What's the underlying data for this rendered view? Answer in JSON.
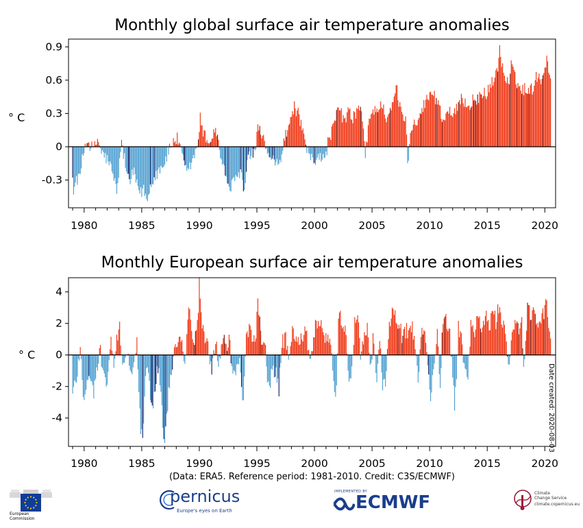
{
  "chart_data": [
    {
      "type": "bar",
      "title": "Monthly global surface air temperature anomalies",
      "ylabel": "° C",
      "xlabel": "",
      "x_range": [
        1979,
        2020.58
      ],
      "ylim": [
        -0.55,
        0.97
      ],
      "y_ticks": [
        "0.9",
        "0.6",
        "0.3",
        "0",
        "-0.3"
      ],
      "y_tick_values": [
        0.9,
        0.6,
        0.3,
        0,
        -0.3
      ],
      "x_ticks": [
        "1980",
        "1985",
        "1990",
        "1995",
        "2000",
        "2005",
        "2010",
        "2015",
        "2020"
      ],
      "x_tick_values": [
        1980,
        1985,
        1990,
        1995,
        2000,
        2005,
        2010,
        2015,
        2020
      ],
      "grid": false,
      "series_note": "monthly anomalies; positive bars red, negative bars blue",
      "monthly_values": [],
      "anchors": [
        [
          1979.0,
          -0.22
        ],
        [
          1979.1,
          -0.48
        ],
        [
          1979.3,
          -0.27
        ],
        [
          1979.5,
          -0.3
        ],
        [
          1979.7,
          -0.22
        ],
        [
          1979.9,
          -0.08
        ],
        [
          1980.2,
          0.06
        ],
        [
          1980.5,
          0.02
        ],
        [
          1980.8,
          -0.03
        ],
        [
          1981.2,
          0.07
        ],
        [
          1981.5,
          -0.05
        ],
        [
          1981.9,
          -0.1
        ],
        [
          1982.3,
          -0.18
        ],
        [
          1982.6,
          -0.3
        ],
        [
          1982.9,
          -0.4
        ],
        [
          1983.2,
          0.04
        ],
        [
          1983.5,
          -0.1
        ],
        [
          1983.8,
          -0.3
        ],
        [
          1984.0,
          -0.32
        ],
        [
          1984.3,
          -0.22
        ],
        [
          1984.6,
          -0.36
        ],
        [
          1984.9,
          -0.42
        ],
        [
          1985.2,
          -0.38
        ],
        [
          1985.5,
          -0.5
        ],
        [
          1985.8,
          -0.32
        ],
        [
          1986.1,
          -0.28
        ],
        [
          1986.4,
          -0.22
        ],
        [
          1986.7,
          -0.18
        ],
        [
          1987.0,
          -0.14
        ],
        [
          1987.4,
          -0.02
        ],
        [
          1987.8,
          0.06
        ],
        [
          1988.1,
          0.07
        ],
        [
          1988.4,
          -0.04
        ],
        [
          1988.7,
          -0.18
        ],
        [
          1989.0,
          -0.24
        ],
        [
          1989.4,
          -0.12
        ],
        [
          1989.8,
          -0.03
        ],
        [
          1990.1,
          0.27
        ],
        [
          1990.3,
          0.12
        ],
        [
          1990.6,
          0.08
        ],
        [
          1990.9,
          0.04
        ],
        [
          1991.2,
          0.1
        ],
        [
          1991.4,
          0.2
        ],
        [
          1991.7,
          0.0
        ],
        [
          1992.1,
          -0.2
        ],
        [
          1992.4,
          -0.3
        ],
        [
          1992.7,
          -0.38
        ],
        [
          1993.0,
          -0.32
        ],
        [
          1993.3,
          -0.28
        ],
        [
          1993.6,
          -0.2
        ],
        [
          1993.9,
          -0.44
        ],
        [
          1994.2,
          -0.12
        ],
        [
          1994.6,
          -0.05
        ],
        [
          1994.9,
          -0.1
        ],
        [
          1995.1,
          0.26
        ],
        [
          1995.3,
          0.1
        ],
        [
          1995.6,
          0.06
        ],
        [
          1995.9,
          -0.04
        ],
        [
          1996.2,
          -0.16
        ],
        [
          1996.5,
          -0.12
        ],
        [
          1996.8,
          -0.18
        ],
        [
          1997.1,
          -0.1
        ],
        [
          1997.4,
          0.08
        ],
        [
          1997.7,
          0.14
        ],
        [
          1998.0,
          0.28
        ],
        [
          1998.2,
          0.36
        ],
        [
          1998.5,
          0.32
        ],
        [
          1998.8,
          0.22
        ],
        [
          1999.1,
          0.05
        ],
        [
          1999.4,
          -0.06
        ],
        [
          1999.7,
          -0.1
        ],
        [
          2000.0,
          -0.14
        ],
        [
          2000.3,
          -0.06
        ],
        [
          2000.6,
          -0.08
        ],
        [
          2000.9,
          -0.14
        ],
        [
          2001.2,
          0.06
        ],
        [
          2001.5,
          0.14
        ],
        [
          2001.8,
          0.22
        ],
        [
          2002.1,
          0.36
        ],
        [
          2002.4,
          0.28
        ],
        [
          2002.7,
          0.24
        ],
        [
          2003.0,
          0.32
        ],
        [
          2003.3,
          0.26
        ],
        [
          2003.6,
          0.3
        ],
        [
          2003.9,
          0.36
        ],
        [
          2004.2,
          0.24
        ],
        [
          2004.4,
          -0.12
        ],
        [
          2004.7,
          0.22
        ],
        [
          2005.0,
          0.3
        ],
        [
          2005.3,
          0.36
        ],
        [
          2005.6,
          0.32
        ],
        [
          2005.9,
          0.4
        ],
        [
          2006.2,
          0.26
        ],
        [
          2006.5,
          0.32
        ],
        [
          2006.8,
          0.36
        ],
        [
          2007.1,
          0.55
        ],
        [
          2007.3,
          0.4
        ],
        [
          2007.6,
          0.3
        ],
        [
          2007.9,
          0.26
        ],
        [
          2008.1,
          -0.14
        ],
        [
          2008.4,
          0.16
        ],
        [
          2008.7,
          0.24
        ],
        [
          2009.0,
          0.26
        ],
        [
          2009.3,
          0.32
        ],
        [
          2009.6,
          0.4
        ],
        [
          2009.9,
          0.44
        ],
        [
          2010.2,
          0.5
        ],
        [
          2010.5,
          0.44
        ],
        [
          2010.8,
          0.4
        ],
        [
          2011.1,
          0.22
        ],
        [
          2011.4,
          0.28
        ],
        [
          2011.7,
          0.36
        ],
        [
          2012.0,
          0.26
        ],
        [
          2012.3,
          0.32
        ],
        [
          2012.6,
          0.4
        ],
        [
          2012.9,
          0.44
        ],
        [
          2013.2,
          0.38
        ],
        [
          2013.5,
          0.36
        ],
        [
          2013.8,
          0.44
        ],
        [
          2014.1,
          0.4
        ],
        [
          2014.4,
          0.46
        ],
        [
          2014.7,
          0.5
        ],
        [
          2015.0,
          0.48
        ],
        [
          2015.3,
          0.56
        ],
        [
          2015.6,
          0.6
        ],
        [
          2015.9,
          0.72
        ],
        [
          2016.1,
          0.88
        ],
        [
          2016.3,
          0.72
        ],
        [
          2016.6,
          0.6
        ],
        [
          2016.9,
          0.56
        ],
        [
          2017.1,
          0.74
        ],
        [
          2017.4,
          0.62
        ],
        [
          2017.7,
          0.56
        ],
        [
          2018.0,
          0.5
        ],
        [
          2018.3,
          0.54
        ],
        [
          2018.6,
          0.5
        ],
        [
          2018.9,
          0.52
        ],
        [
          2019.2,
          0.62
        ],
        [
          2019.5,
          0.64
        ],
        [
          2019.8,
          0.6
        ],
        [
          2020.0,
          0.74
        ],
        [
          2020.2,
          0.8
        ],
        [
          2020.4,
          0.68
        ],
        [
          2020.55,
          0.5
        ]
      ]
    },
    {
      "type": "bar",
      "title": "Monthly European surface air temperature anomalies",
      "ylabel": "° C",
      "xlabel": "",
      "x_range": [
        1979,
        2020.58
      ],
      "ylim": [
        -5.8,
        4.9
      ],
      "y_ticks": [
        "4",
        "2",
        "0",
        "-2",
        "-4"
      ],
      "y_tick_values": [
        4,
        2,
        0,
        -2,
        -4
      ],
      "x_ticks": [
        "1980",
        "1985",
        "1990",
        "1995",
        "2000",
        "2005",
        "2010",
        "2015",
        "2020"
      ],
      "x_tick_values": [
        1980,
        1985,
        1990,
        1995,
        2000,
        2005,
        2010,
        2015,
        2020
      ],
      "grid": false,
      "series_note": "monthly anomalies; positive bars red, negative bars blue",
      "anchors": [
        [
          1979.0,
          -2.5
        ],
        [
          1979.2,
          -1.8
        ],
        [
          1979.4,
          -1.2
        ],
        [
          1979.7,
          0.9
        ],
        [
          1979.9,
          -2.7
        ],
        [
          1980.2,
          -2.0
        ],
        [
          1980.5,
          -1.4
        ],
        [
          1980.8,
          -2.4
        ],
        [
          1981.1,
          -1.0
        ],
        [
          1981.4,
          0.3
        ],
        [
          1981.7,
          -1.4
        ],
        [
          1982.0,
          -1.6
        ],
        [
          1982.3,
          0.9
        ],
        [
          1982.6,
          -1.0
        ],
        [
          1982.9,
          1.3
        ],
        [
          1983.1,
          1.6
        ],
        [
          1983.4,
          -0.8
        ],
        [
          1983.7,
          0.6
        ],
        [
          1984.0,
          -1.4
        ],
        [
          1984.3,
          -0.9
        ],
        [
          1984.6,
          0.8
        ],
        [
          1984.9,
          -4.8
        ],
        [
          1985.1,
          -5.1
        ],
        [
          1985.3,
          -1.4
        ],
        [
          1985.6,
          -1.2
        ],
        [
          1985.9,
          -3.8
        ],
        [
          1986.2,
          -1.6
        ],
        [
          1986.5,
          -0.6
        ],
        [
          1986.8,
          -4.1
        ],
        [
          1987.0,
          -5.5
        ],
        [
          1987.3,
          -2.6
        ],
        [
          1987.6,
          -0.8
        ],
        [
          1987.9,
          0.4
        ],
        [
          1988.2,
          1.4
        ],
        [
          1988.5,
          0.7
        ],
        [
          1988.8,
          -0.4
        ],
        [
          1989.0,
          2.4
        ],
        [
          1989.2,
          2.8
        ],
        [
          1989.5,
          0.9
        ],
        [
          1989.8,
          1.2
        ],
        [
          1990.0,
          4.5
        ],
        [
          1990.2,
          2.0
        ],
        [
          1990.5,
          0.9
        ],
        [
          1990.8,
          0.4
        ],
        [
          1991.1,
          -1.1
        ],
        [
          1991.4,
          0.8
        ],
        [
          1991.7,
          -0.7
        ],
        [
          1992.0,
          1.0
        ],
        [
          1992.3,
          0.6
        ],
        [
          1992.6,
          1.1
        ],
        [
          1992.9,
          -1.5
        ],
        [
          1993.2,
          -0.8
        ],
        [
          1993.5,
          -0.5
        ],
        [
          1993.8,
          -3.2
        ],
        [
          1994.1,
          1.4
        ],
        [
          1994.4,
          1.8
        ],
        [
          1994.7,
          0.9
        ],
        [
          1994.9,
          1.2
        ],
        [
          1995.1,
          3.4
        ],
        [
          1995.4,
          0.7
        ],
        [
          1995.7,
          1.3
        ],
        [
          1995.9,
          -2.2
        ],
        [
          1996.1,
          -1.8
        ],
        [
          1996.4,
          -0.9
        ],
        [
          1996.7,
          -1.3
        ],
        [
          1996.9,
          -2.4
        ],
        [
          1997.2,
          0.8
        ],
        [
          1997.5,
          1.0
        ],
        [
          1997.8,
          -0.5
        ],
        [
          1998.1,
          1.5
        ],
        [
          1998.4,
          1.2
        ],
        [
          1998.7,
          0.9
        ],
        [
          1999.0,
          1.2
        ],
        [
          1999.3,
          1.6
        ],
        [
          1999.6,
          -0.7
        ],
        [
          1999.9,
          1.1
        ],
        [
          2000.1,
          1.8
        ],
        [
          2000.4,
          2.2
        ],
        [
          2000.7,
          1.5
        ],
        [
          2001.0,
          1.2
        ],
        [
          2001.3,
          0.9
        ],
        [
          2001.6,
          -1.1
        ],
        [
          2001.9,
          -2.7
        ],
        [
          2002.1,
          3.3
        ],
        [
          2002.4,
          1.8
        ],
        [
          2002.7,
          1.5
        ],
        [
          2002.9,
          -1.2
        ],
        [
          2003.2,
          -1.9
        ],
        [
          2003.5,
          1.9
        ],
        [
          2003.8,
          2.4
        ],
        [
          2004.0,
          -0.6
        ],
        [
          2004.3,
          1.4
        ],
        [
          2004.6,
          1.6
        ],
        [
          2004.9,
          -1.0
        ],
        [
          2005.1,
          1.2
        ],
        [
          2005.4,
          -1.4
        ],
        [
          2005.7,
          1.0
        ],
        [
          2005.9,
          -1.7
        ],
        [
          2006.2,
          -1.8
        ],
        [
          2006.5,
          1.9
        ],
        [
          2006.8,
          2.6
        ],
        [
          2007.0,
          2.8
        ],
        [
          2007.3,
          2.0
        ],
        [
          2007.6,
          1.2
        ],
        [
          2007.9,
          1.4
        ],
        [
          2008.1,
          1.6
        ],
        [
          2008.4,
          1.9
        ],
        [
          2008.7,
          1.0
        ],
        [
          2009.0,
          -1.6
        ],
        [
          2009.3,
          1.4
        ],
        [
          2009.6,
          1.6
        ],
        [
          2009.9,
          -1.2
        ],
        [
          2010.1,
          -2.8
        ],
        [
          2010.4,
          -0.8
        ],
        [
          2010.7,
          1.4
        ],
        [
          2010.9,
          -2.2
        ],
        [
          2011.1,
          1.6
        ],
        [
          2011.4,
          2.1
        ],
        [
          2011.7,
          1.8
        ],
        [
          2012.0,
          -1.4
        ],
        [
          2012.2,
          -3.4
        ],
        [
          2012.5,
          1.8
        ],
        [
          2012.8,
          1.2
        ],
        [
          2013.0,
          -1.0
        ],
        [
          2013.3,
          -1.6
        ],
        [
          2013.6,
          1.9
        ],
        [
          2013.9,
          1.6
        ],
        [
          2014.1,
          2.2
        ],
        [
          2014.4,
          2.0
        ],
        [
          2014.7,
          1.8
        ],
        [
          2014.9,
          2.6
        ],
        [
          2015.2,
          1.6
        ],
        [
          2015.5,
          2.9
        ],
        [
          2015.8,
          2.0
        ],
        [
          2016.0,
          3.2
        ],
        [
          2016.3,
          1.8
        ],
        [
          2016.6,
          1.4
        ],
        [
          2016.9,
          -0.8
        ],
        [
          2017.1,
          1.5
        ],
        [
          2017.4,
          2.0
        ],
        [
          2017.7,
          1.6
        ],
        [
          2018.0,
          2.4
        ],
        [
          2018.2,
          -1.5
        ],
        [
          2018.5,
          2.8
        ],
        [
          2018.8,
          2.5
        ],
        [
          2019.1,
          2.6
        ],
        [
          2019.4,
          1.6
        ],
        [
          2019.7,
          2.2
        ],
        [
          2019.9,
          2.6
        ],
        [
          2020.1,
          3.8
        ],
        [
          2020.3,
          1.8
        ],
        [
          2020.45,
          1.3
        ],
        [
          2020.55,
          -0.3
        ]
      ]
    }
  ],
  "credit": "(Data: ERA5.  Reference period: 1981-2010.  Credit: C3S/ECMWF)",
  "date_created": "Date created: 2020-08-03",
  "logos": {
    "eu_line1": "European",
    "eu_line2": "Commission",
    "copernicus": "pernicus",
    "copernicus_tagline": "Europe's eyes on Earth",
    "ecmwf_implemented": "IMPLEMENTED BY",
    "ecmwf": "ECMWF",
    "c3s_line1": "Climate",
    "c3s_line2": "Change Service",
    "c3s_url": "climate.copernicus.eu"
  },
  "colors": {
    "positive": "#f03512",
    "positive_dark": "#7a1208",
    "negative": "#4f9fd0",
    "negative_dark": "#0d1f66",
    "brand_blue": "#1a3e8c",
    "eu_blue": "#0f3d99",
    "eu_star": "#ffd200"
  }
}
